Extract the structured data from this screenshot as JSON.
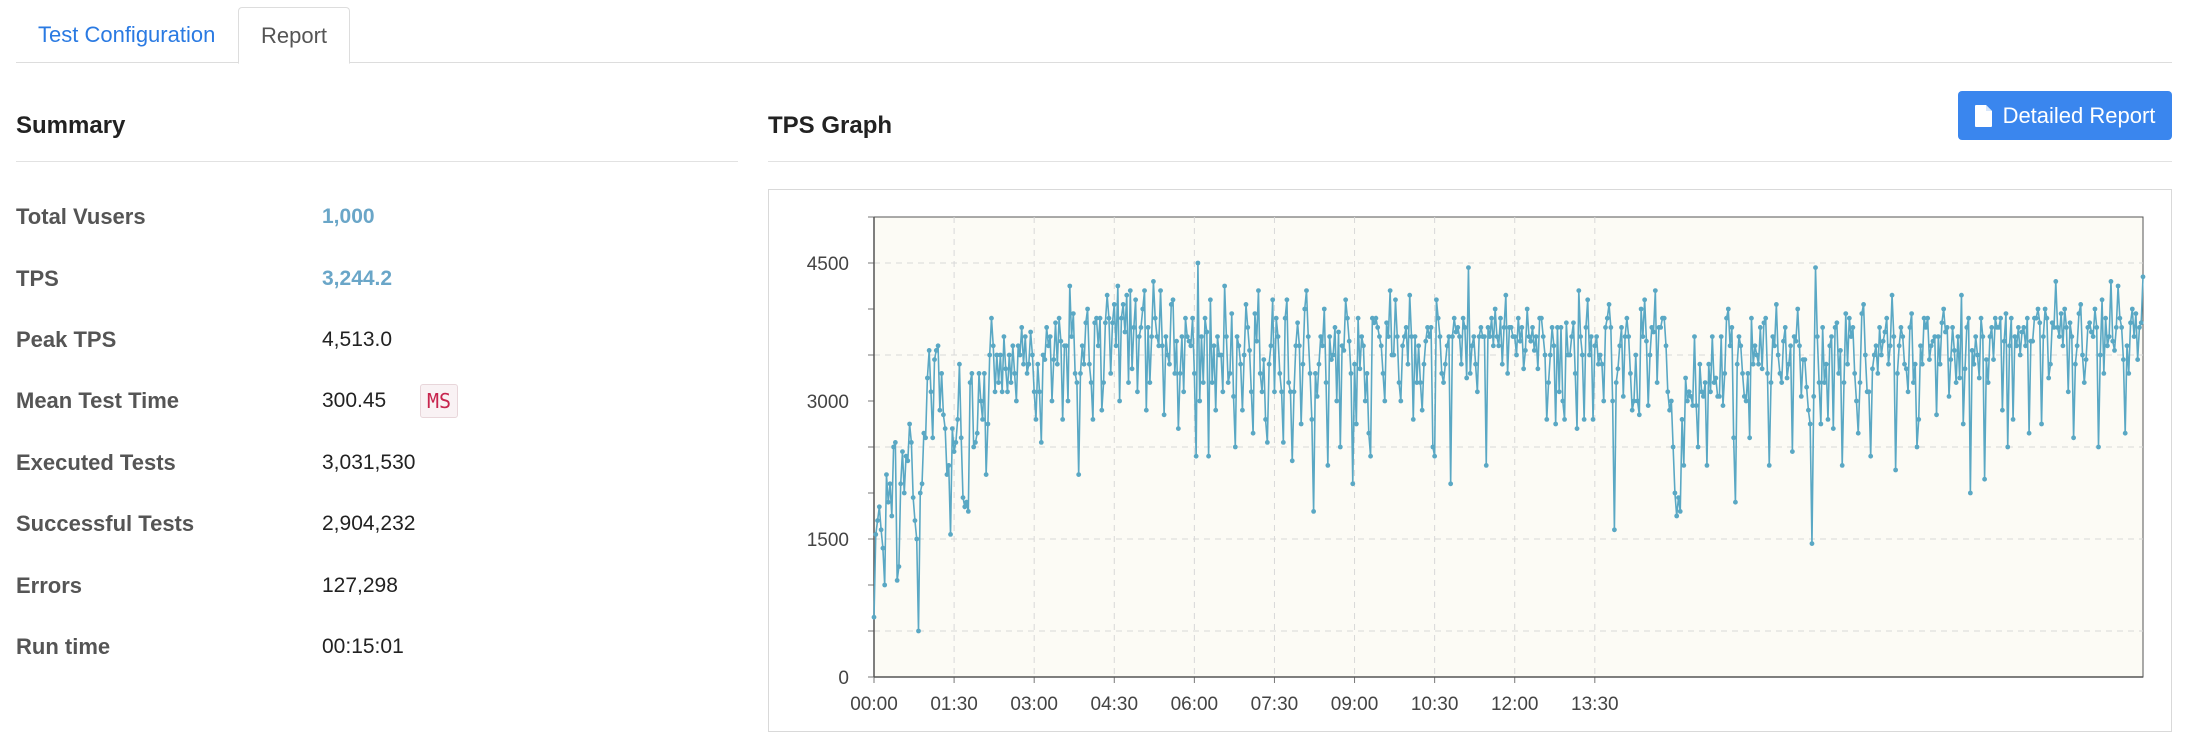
{
  "tabs": [
    {
      "label": "Test Configuration"
    },
    {
      "label": "Report"
    }
  ],
  "summary": {
    "title": "Summary",
    "rows": [
      {
        "label": "Total Vusers",
        "value": "1,000"
      },
      {
        "label": "TPS",
        "value": "3,244.2"
      },
      {
        "label": "Peak TPS",
        "value": "4,513.0"
      },
      {
        "label": "Mean Test Time",
        "value": "300.45",
        "unit": "MS"
      },
      {
        "label": "Executed Tests",
        "value": "3,031,530"
      },
      {
        "label": "Successful Tests",
        "value": "2,904,232"
      },
      {
        "label": "Errors",
        "value": "127,298"
      },
      {
        "label": "Run time",
        "value": "00:15:01"
      }
    ]
  },
  "graph": {
    "title": "TPS Graph",
    "button_label": "Detailed Report",
    "button_icon": "document-icon",
    "accent_color": "#3a86ee",
    "line_color": "#5aa8c4"
  },
  "chart_data": {
    "type": "line",
    "title": "",
    "xlabel": "",
    "ylabel": "",
    "ylim": [
      0,
      5000
    ],
    "yticks": [
      "0",
      "1500",
      "3000",
      "4500"
    ],
    "xticks": [
      "00:00",
      "01:30",
      "03:00",
      "04:30",
      "06:00",
      "07:30",
      "09:00",
      "10:30",
      "12:00",
      "13:30"
    ],
    "x_unit_seconds_per_point": 2,
    "grid": true,
    "series": [
      {
        "values": [
          650,
          1550,
          1700,
          1850,
          1600,
          1400,
          1000,
          2200,
          1900,
          2100,
          1750,
          2500,
          2550,
          1050,
          1200,
          2100,
          2450,
          2000,
          2400,
          2350,
          2750,
          2550,
          1950,
          1700,
          1500,
          500,
          2000,
          2100,
          2650,
          2600,
          3250,
          3550,
          3100,
          2600,
          3450,
          3550,
          3600,
          2900,
          3300,
          2850,
          2700,
          2200,
          2300,
          1550,
          2700,
          2450,
          2550,
          2800,
          3400,
          2600,
          1950,
          1850,
          1900,
          1800,
          3200,
          3300,
          2500,
          2550,
          2650,
          3300,
          3000,
          2800,
          3300,
          2200,
          2750,
          3500,
          3900,
          3600,
          3100,
          3500,
          3200,
          3500,
          3100,
          3700,
          3350,
          3100,
          3500,
          3200,
          3600,
          3300,
          3000,
          3600,
          3500,
          3800,
          3400,
          3700,
          3300,
          3400,
          3750,
          3500,
          3100,
          2800,
          3400,
          3100,
          2550,
          3500,
          3450,
          3800,
          3600,
          3700,
          3000,
          3450,
          3850,
          3400,
          3900,
          3650,
          2800,
          3600,
          3600,
          3000,
          4250,
          3700,
          3950,
          3300,
          3200,
          2200,
          3300,
          3600,
          3400,
          3850,
          4000,
          3400,
          3200,
          2800,
          3850,
          3900,
          3600,
          3900,
          2900,
          3200,
          3850,
          4150,
          3900,
          3300,
          3850,
          4050,
          3600,
          4250,
          3000,
          3900,
          4050,
          3750,
          4150,
          3200,
          4200,
          3350,
          3800,
          4100,
          3100,
          3700,
          3800,
          4000,
          4200,
          2900,
          3800,
          3200,
          3700,
          4300,
          3900,
          3700,
          3600,
          4200,
          3600,
          2850,
          3700,
          3500,
          3400,
          4050,
          4100,
          3300,
          3650,
          2700,
          3300,
          3700,
          3100,
          3900,
          3700,
          3650,
          3600,
          3900,
          3300,
          2400,
          4500,
          3000,
          3700,
          3200,
          3900,
          3750,
          2400,
          4100,
          3200,
          3600,
          2900,
          3700,
          3500,
          3500,
          3100,
          4250,
          3700,
          3200,
          3300,
          3950,
          3050,
          2500,
          3700,
          3600,
          3400,
          2900,
          3500,
          4050,
          3800,
          3550,
          3100,
          2650,
          3950,
          3650,
          4200,
          3300,
          3100,
          3450,
          2800,
          2550,
          3400,
          3600,
          4100,
          3100,
          3900,
          3700,
          3300,
          3100,
          2550,
          3900,
          4100,
          3200,
          3100,
          2350,
          3100,
          3600,
          3850,
          3600,
          2750,
          3400,
          4000,
          4200,
          3700,
          3300,
          2800,
          1800,
          3300,
          3050,
          3400,
          3700,
          3600,
          4000,
          3200,
          2300,
          3700,
          3450,
          3500,
          3800,
          3000,
          3750,
          2500,
          3600,
          3550,
          4100,
          3900,
          3650,
          3300,
          2100,
          3400,
          2750,
          3900,
          3350,
          3700,
          3600,
          3000,
          3300,
          2650,
          2400,
          3900,
          3850,
          3900,
          3800,
          3700,
          3600,
          3300,
          3000,
          3850,
          3700,
          4200,
          3500,
          3500,
          4100,
          3700,
          3200,
          3000,
          3600,
          3700,
          3800,
          3400,
          4150,
          3700,
          2800,
          3700,
          3200,
          3600,
          3200,
          2900,
          3400,
          3650,
          3800,
          3700,
          3800,
          2500,
          2400,
          4100,
          3900,
          3700,
          3300,
          3200,
          3400,
          3600,
          3700,
          2100,
          3700,
          3900,
          3750,
          3800,
          3700,
          3400,
          3900,
          3800,
          3250,
          4450,
          3300,
          3600,
          3700,
          3400,
          3100,
          3700,
          3800,
          3700,
          3700,
          2300,
          3800,
          3700,
          3900,
          3600,
          4000,
          3700,
          3600,
          3900,
          3400,
          3800,
          4150,
          3300,
          3800,
          3800,
          3700,
          3700,
          3500,
          3900,
          3650,
          3800,
          3350,
          3550,
          4000,
          3700,
          3650,
          3800,
          3550,
          3700,
          3350,
          3900,
          3900,
          3700,
          3500,
          2800,
          3200,
          3500,
          3800,
          3600,
          2750,
          3800,
          3100,
          3800,
          3000,
          2800,
          3850,
          3500,
          3500,
          3700,
          3850,
          3300,
          2700,
          4200,
          3700,
          3500,
          2800,
          3800,
          4100,
          3500,
          3700,
          2800,
          3600,
          3700,
          3400,
          3500,
          3400,
          3000,
          3800,
          3900,
          4050,
          3800,
          3000,
          1600,
          3200,
          3350,
          3600,
          3800,
          3050,
          3700,
          3900,
          3700,
          3300,
          2900,
          3000,
          3500,
          3000,
          2850,
          4000,
          3700,
          4100,
          3650,
          2950,
          3500,
          3800,
          3750,
          4200,
          3200,
          3800,
          3800,
          3900,
          3900,
          3600,
          3100,
          2900,
          3000,
          2500,
          2000,
          1750,
          1950,
          1800,
          2800,
          2300,
          3250,
          3000,
          3100,
          3050,
          2950,
          3700,
          2950,
          2500,
          3400,
          3100,
          3050,
          3200,
          2300,
          3400,
          3100,
          3700,
          3200,
          3250,
          3050,
          3050,
          3700,
          2950,
          3300,
          3900,
          4000,
          3600,
          3800,
          2600,
          1900,
          3400,
          3700,
          3600,
          3300,
          3050,
          3000,
          3300,
          2600,
          3900,
          3400,
          3600,
          3500,
          3400,
          3800,
          3350,
          3850,
          3900,
          3300,
          2300,
          3200,
          3700,
          3600,
          4050,
          3500,
          3300,
          3200,
          3650,
          3800,
          3250,
          3400,
          3600,
          2450,
          3700,
          3650,
          4000,
          3600,
          3050,
          3450,
          3450,
          3150,
          2900,
          2750,
          1450,
          3050,
          4450,
          3700,
          3200,
          2750,
          3800,
          3200,
          3400,
          2800,
          3600,
          3700,
          2700,
          3800,
          3850,
          3300,
          3550,
          2300,
          3200,
          3950,
          3400,
          3900,
          3700,
          3800,
          3300,
          3000,
          2650,
          3200,
          3950,
          4050,
          3500,
          3100,
          3100,
          2400,
          3350,
          3500,
          3600,
          3300,
          3800,
          3500,
          3650,
          3750,
          3900,
          3400,
          3600,
          4150,
          3700,
          2250,
          3300,
          3600,
          3800,
          3700,
          3400,
          3350,
          3100,
          3800,
          3950,
          3200,
          3400,
          2500,
          2800,
          3600,
          3400,
          3900,
          3800,
          3900,
          3450,
          3600,
          3650,
          3700,
          2850,
          3700,
          3400,
          3850,
          4000,
          3750,
          3800,
          3050,
          3450,
          3800,
          3550,
          3200,
          3700,
          3250,
          4150,
          2750,
          3350,
          3800,
          3900,
          2000,
          3550,
          3400,
          3700,
          3500,
          3250,
          3900,
          3700,
          2150,
          3450,
          3200,
          3700,
          3800,
          3450,
          3900,
          3800,
          3800,
          3900,
          2900,
          3650,
          3950,
          2500,
          3600,
          3900,
          2800,
          3700,
          3600,
          3800,
          3500,
          3750,
          3800,
          3600,
          3900,
          2650,
          3650,
          3650,
          3900,
          3900,
          4000,
          3850,
          2750,
          3700,
          4000,
          3900,
          3250,
          3400,
          3850,
          3800,
          4300,
          3800,
          3700,
          3950,
          3600,
          4000,
          3800,
          3100,
          3850,
          3700,
          2600,
          3400,
          3600,
          3950,
          4050,
          3500,
          3200,
          3450,
          3800,
          3850,
          3750,
          3700,
          4000,
          3800,
          2500,
          3500,
          4100,
          3300,
          3900,
          3600,
          3700,
          4300,
          3650,
          3550,
          3800,
          4250,
          3900,
          3800,
          3450,
          2650,
          3600,
          3300,
          3850,
          4000,
          3700,
          3950,
          3450,
          3800,
          3850,
          4350
        ]
      }
    ]
  }
}
